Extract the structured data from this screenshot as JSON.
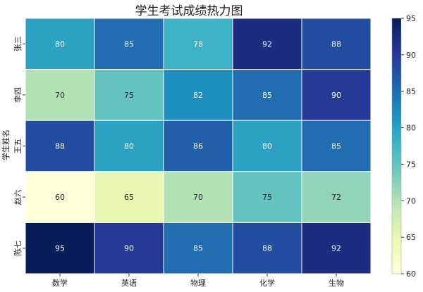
{
  "chart_data": {
    "type": "heatmap",
    "title": "学生考试成绩热力图",
    "xlabel": "",
    "ylabel": "学生姓名",
    "x_categories": [
      "数学",
      "英语",
      "物理",
      "化学",
      "生物"
    ],
    "y_categories": [
      "张三",
      "李四",
      "王五",
      "赵六",
      "陈七"
    ],
    "values": [
      [
        80,
        85,
        78,
        92,
        88
      ],
      [
        70,
        75,
        82,
        85,
        90
      ],
      [
        88,
        80,
        86,
        80,
        85
      ],
      [
        60,
        65,
        70,
        75,
        72
      ],
      [
        95,
        90,
        85,
        88,
        92
      ]
    ],
    "colorbar": {
      "min": 60,
      "max": 95,
      "ticks": [
        60,
        65,
        70,
        75,
        80,
        85,
        90,
        95
      ]
    },
    "colormap": "YlGnBu",
    "colormap_stops": [
      "#ffffd9",
      "#edf8b1",
      "#c7e9b4",
      "#7fcdbb",
      "#41b6c4",
      "#1d91c0",
      "#225ea8",
      "#253494",
      "#081d58"
    ],
    "annotations": true,
    "grid_line_color": "#ffffff"
  }
}
